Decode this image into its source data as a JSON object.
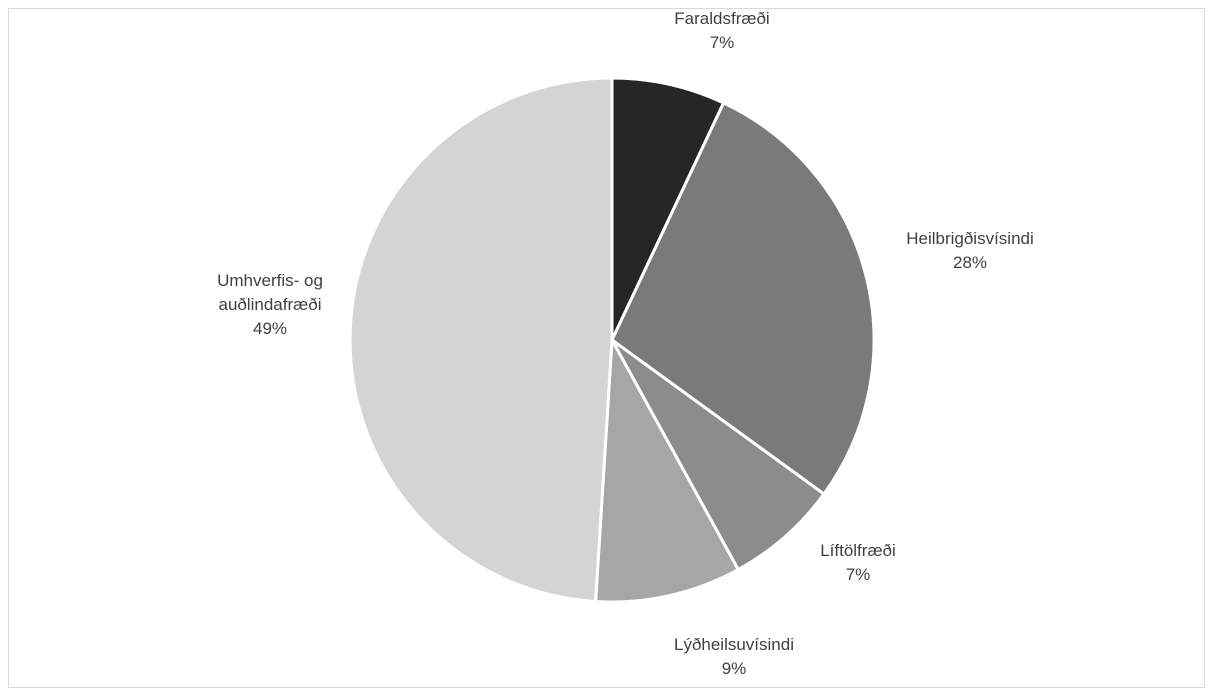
{
  "chart_data": {
    "type": "pie",
    "title": "",
    "legend": "none",
    "slices": [
      {
        "name": "Faraldsfræði",
        "value": 7,
        "label_lines": [
          "Faraldsfræði"
        ],
        "pct_label": "7%",
        "color": "#262626"
      },
      {
        "name": "Heilbrigðisvísindi",
        "value": 28,
        "label_lines": [
          "Heilbrigðisvísindi"
        ],
        "pct_label": "28%",
        "color": "#7a7a7a"
      },
      {
        "name": "Líftölfræði",
        "value": 7,
        "label_lines": [
          "Líftölfræði"
        ],
        "pct_label": "7%",
        "color": "#8c8c8c"
      },
      {
        "name": "Lýðheilsuvísindi",
        "value": 9,
        "label_lines": [
          "Lýðheilsuvísindi"
        ],
        "pct_label": "9%",
        "color": "#a6a6a6"
      },
      {
        "name": "Umhverfis- og auðlindafræði",
        "value": 49,
        "label_lines": [
          "Umhverfis- og",
          "auðlindafræði"
        ],
        "pct_label": "49%",
        "color": "#d4d4d4"
      }
    ],
    "slice_border_color": "#ffffff"
  }
}
